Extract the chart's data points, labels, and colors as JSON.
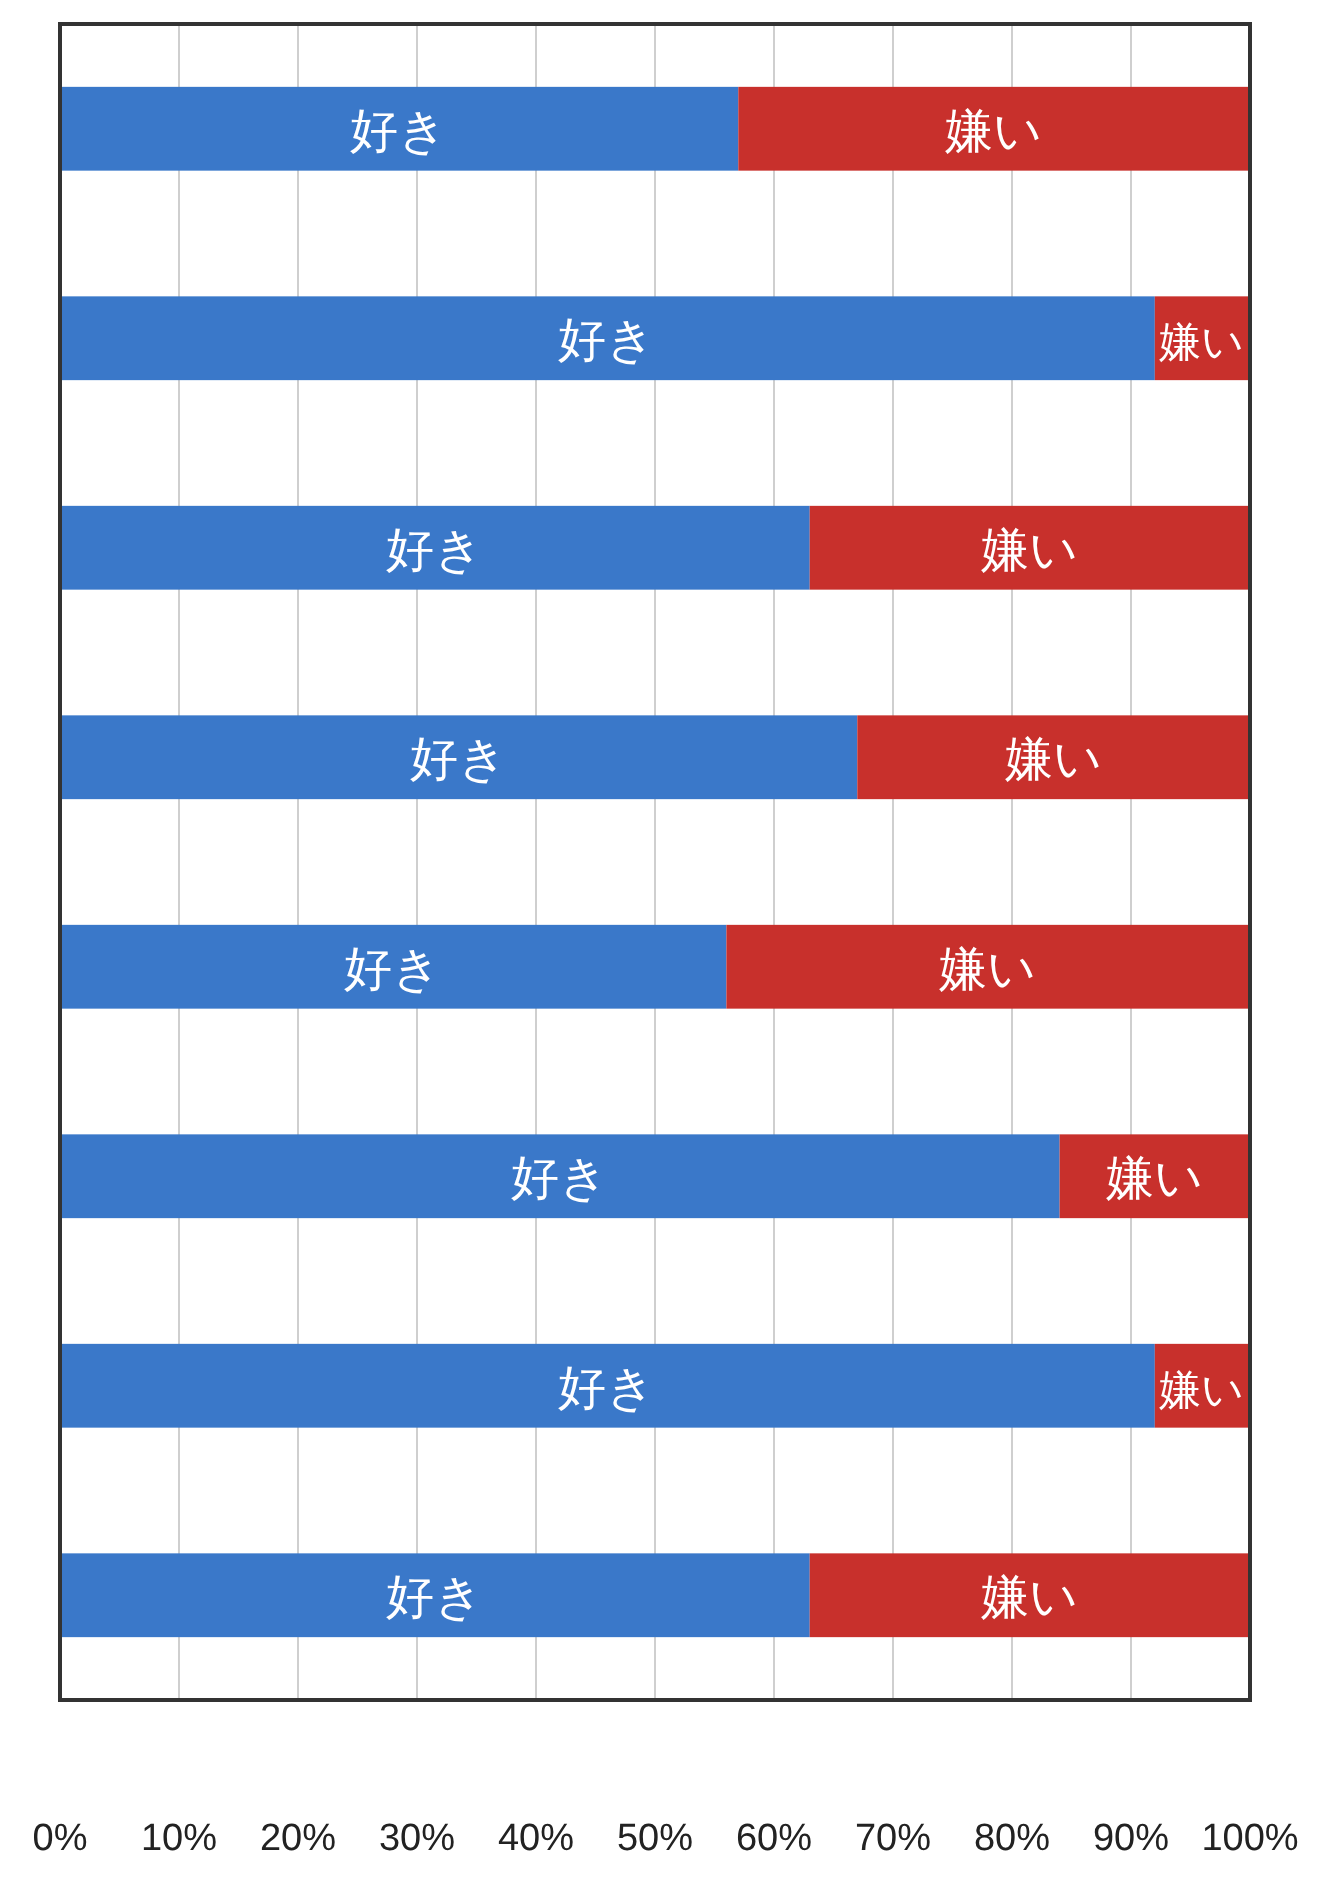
{
  "chart_data": {
    "type": "bar",
    "orientation": "horizontal",
    "stacked": true,
    "categories": [
      null,
      null,
      null,
      null,
      null,
      null,
      null,
      null
    ],
    "series": [
      {
        "name": "好き",
        "color": "#3a78c9",
        "values": [
          57,
          92,
          63,
          67,
          56,
          84,
          92,
          63
        ]
      },
      {
        "name": "嫌い",
        "color": "#c8302c",
        "values": [
          43,
          8,
          37,
          33,
          44,
          16,
          8,
          37
        ]
      }
    ],
    "xlim": [
      0,
      100
    ],
    "xticks": [
      {
        "value": 0,
        "label": "0%"
      },
      {
        "value": 10,
        "label": "10%"
      },
      {
        "value": 20,
        "label": "20%"
      },
      {
        "value": 30,
        "label": "30%"
      },
      {
        "value": 40,
        "label": "40%"
      },
      {
        "value": 50,
        "label": "50%"
      },
      {
        "value": 60,
        "label": "60%"
      },
      {
        "value": 70,
        "label": "70%"
      },
      {
        "value": 80,
        "label": "80%"
      },
      {
        "value": 90,
        "label": "90%"
      },
      {
        "value": 100,
        "label": "100%"
      }
    ],
    "grid": "x"
  }
}
